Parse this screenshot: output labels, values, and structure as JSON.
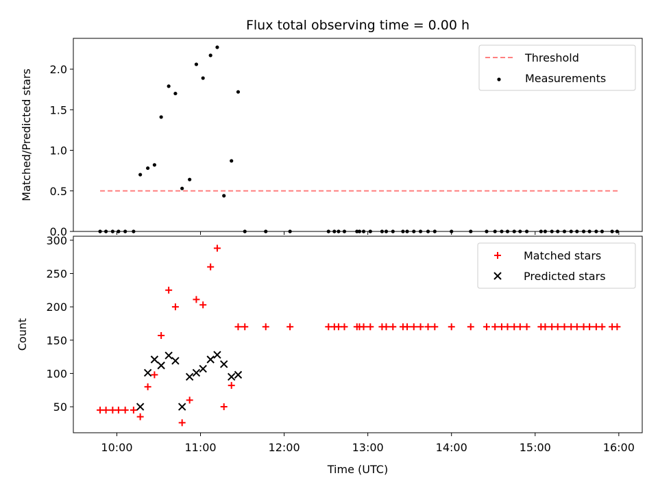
{
  "figure": {
    "title": "Flux total observing time = 0.00 h",
    "xlabel": "Time (UTC)"
  },
  "chart_data": [
    {
      "type": "scatter",
      "panel": "top",
      "ylabel": "Matched/Predicted stars",
      "ylim": [
        0,
        2.38
      ],
      "yticks": [
        0.0,
        0.5,
        1.0,
        1.5,
        2.0
      ],
      "ytick_labels": [
        "0.0",
        "0.5",
        "1.0",
        "1.5",
        "2.0"
      ],
      "xlim_hours": [
        9.48,
        16.28
      ],
      "xticks_hours": [
        10,
        11,
        12,
        13,
        14,
        15,
        16
      ],
      "xtick_labels": [
        "10:00",
        "11:00",
        "12:00",
        "13:00",
        "14:00",
        "15:00",
        "16:00"
      ],
      "show_xtick_labels": false,
      "legend_position": "upper right",
      "series": [
        {
          "name": "Threshold",
          "kind": "line",
          "style": "dashed",
          "color": "#ff7f7f",
          "x": [
            9.8,
            16.0
          ],
          "y": [
            0.5,
            0.5
          ]
        },
        {
          "name": "Measurements",
          "kind": "scatter",
          "marker": "dot",
          "color": "#000000",
          "x": [
            9.8,
            9.87,
            9.95,
            10.02,
            10.1,
            10.2,
            10.28,
            10.37,
            10.45,
            10.53,
            10.62,
            10.7,
            10.78,
            10.87,
            10.95,
            11.03,
            11.12,
            11.2,
            11.28,
            11.37,
            11.45,
            11.53,
            11.78,
            12.07,
            12.53,
            12.6,
            12.65,
            12.72,
            12.87,
            12.9,
            12.95,
            13.03,
            13.17,
            13.22,
            13.3,
            13.42,
            13.47,
            13.55,
            13.63,
            13.72,
            13.8,
            14.0,
            14.23,
            14.42,
            14.52,
            14.6,
            14.67,
            14.75,
            14.82,
            14.9,
            15.07,
            15.12,
            15.2,
            15.27,
            15.35,
            15.43,
            15.5,
            15.58,
            15.65,
            15.73,
            15.8,
            15.92,
            15.98
          ],
          "y": [
            0,
            0,
            0,
            0,
            0,
            0,
            0.7,
            0.78,
            0.82,
            1.41,
            1.79,
            1.7,
            0.53,
            0.64,
            2.06,
            1.89,
            2.17,
            2.27,
            0.44,
            0.87,
            1.72,
            0,
            0,
            0,
            0,
            0,
            0,
            0,
            0,
            0,
            0,
            0,
            0,
            0,
            0,
            0,
            0,
            0,
            0,
            0,
            0,
            0,
            0,
            0,
            0,
            0,
            0,
            0,
            0,
            0,
            0,
            0,
            0,
            0,
            0,
            0,
            0,
            0,
            0,
            0,
            0,
            0,
            0
          ]
        }
      ]
    },
    {
      "type": "scatter",
      "panel": "bottom",
      "ylabel": "Count",
      "ylim": [
        11,
        306
      ],
      "yticks": [
        50,
        100,
        150,
        200,
        250,
        300
      ],
      "ytick_labels": [
        "50",
        "100",
        "150",
        "200",
        "250",
        "300"
      ],
      "xlim_hours": [
        9.48,
        16.28
      ],
      "xticks_hours": [
        10,
        11,
        12,
        13,
        14,
        15,
        16
      ],
      "xtick_labels": [
        "10:00",
        "11:00",
        "12:00",
        "13:00",
        "14:00",
        "15:00",
        "16:00"
      ],
      "show_xtick_labels": true,
      "legend_position": "upper right",
      "series": [
        {
          "name": "Matched stars",
          "kind": "scatter",
          "marker": "plus",
          "color": "#ff0000",
          "x": [
            9.8,
            9.87,
            9.95,
            10.02,
            10.1,
            10.2,
            10.28,
            10.37,
            10.45,
            10.53,
            10.62,
            10.7,
            10.78,
            10.87,
            10.95,
            11.03,
            11.12,
            11.2,
            11.28,
            11.37,
            11.45,
            11.53,
            11.78,
            12.07,
            12.53,
            12.6,
            12.65,
            12.72,
            12.87,
            12.9,
            12.95,
            13.03,
            13.17,
            13.22,
            13.3,
            13.42,
            13.47,
            13.55,
            13.63,
            13.72,
            13.8,
            14.0,
            14.23,
            14.42,
            14.52,
            14.6,
            14.67,
            14.75,
            14.82,
            14.9,
            15.07,
            15.12,
            15.2,
            15.27,
            15.35,
            15.43,
            15.5,
            15.58,
            15.65,
            15.73,
            15.8,
            15.92,
            15.98
          ],
          "y": [
            45,
            45,
            45,
            45,
            45,
            45,
            35,
            80,
            98,
            157,
            225,
            200,
            26,
            60,
            211,
            203,
            260,
            288,
            50,
            82,
            170,
            170,
            170,
            170,
            170,
            170,
            170,
            170,
            170,
            170,
            170,
            170,
            170,
            170,
            170,
            170,
            170,
            170,
            170,
            170,
            170,
            170,
            170,
            170,
            170,
            170,
            170,
            170,
            170,
            170,
            170,
            170,
            170,
            170,
            170,
            170,
            170,
            170,
            170,
            170,
            170,
            170,
            170
          ]
        },
        {
          "name": "Predicted stars",
          "kind": "scatter",
          "marker": "x",
          "color": "#000000",
          "x": [
            10.28,
            10.37,
            10.45,
            10.53,
            10.62,
            10.7,
            10.78,
            10.87,
            10.95,
            11.03,
            11.12,
            11.2,
            11.28,
            11.37,
            11.45
          ],
          "y": [
            50,
            101,
            121,
            112,
            127,
            119,
            50,
            95,
            101,
            107,
            121,
            128,
            114,
            95,
            98
          ]
        }
      ]
    }
  ]
}
